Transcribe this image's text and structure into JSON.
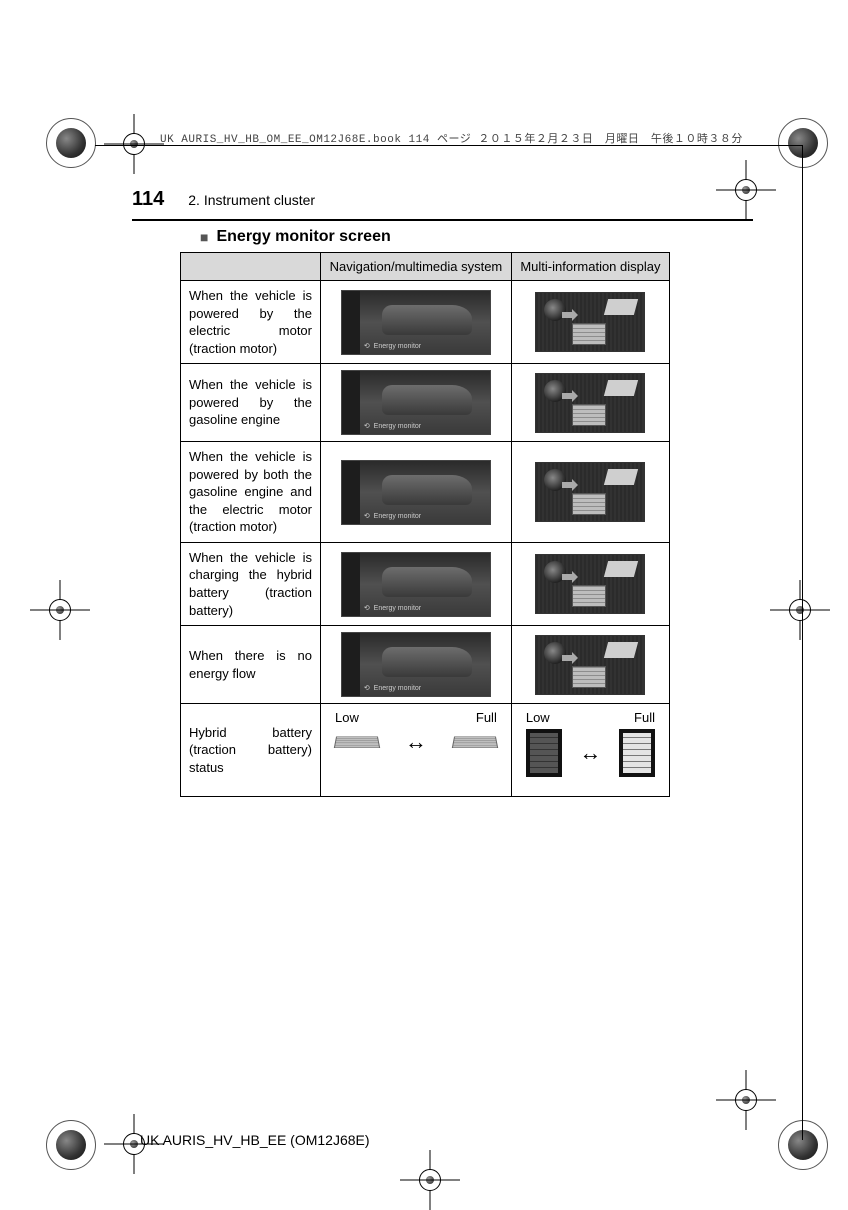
{
  "meta_line": "UK AURIS_HV_HB_OM_EE_OM12J68E.book  114 ページ  ２０１５年２月２３日　月曜日　午後１０時３８分",
  "page_number": "114",
  "chapter": "2. Instrument cluster",
  "section_title": "Energy monitor screen",
  "table": {
    "headers": [
      "",
      "Navigation/multimedia system",
      "Multi-information display"
    ],
    "rows": [
      {
        "desc": "When the vehicle is powered by the electric motor (traction motor)"
      },
      {
        "desc": "When the vehicle is powered by the gasoline engine"
      },
      {
        "desc": "When the vehicle is powered by both the gasoline engine and the electric motor (traction motor)"
      },
      {
        "desc": "When the vehicle is charging the hybrid battery (traction battery)"
      },
      {
        "desc": "When there is no energy flow"
      },
      {
        "desc": "Hybrid battery (traction battery) status"
      }
    ],
    "nav_caption": "Energy monitor",
    "status_labels": {
      "low": "Low",
      "full": "Full"
    },
    "arrow": "↔"
  },
  "footer": "UK AURIS_HV_HB_EE (OM12J68E)",
  "colors": {
    "header_bg": "#d9d9d9",
    "border": "#000000",
    "thumb_dark": "#2f2f2f"
  }
}
